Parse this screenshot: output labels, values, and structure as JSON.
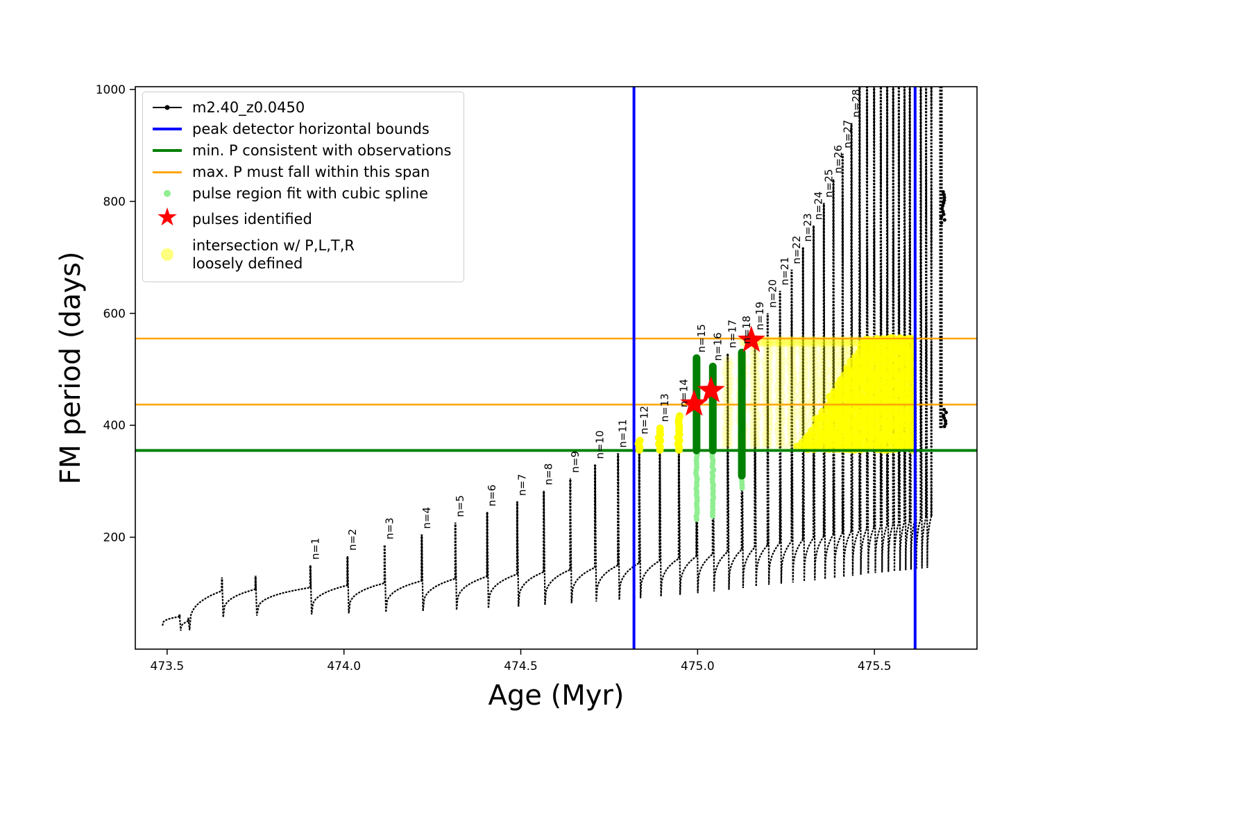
{
  "legend": {
    "items": [
      {
        "label": "m2.40_z0.0450",
        "type": "line-dot",
        "color": "#000000"
      },
      {
        "label": "peak detector horizontal bounds",
        "type": "line",
        "color": "#0000ff"
      },
      {
        "label": "min. P consistent with observations",
        "type": "line",
        "color": "#008000"
      },
      {
        "label": "max. P must fall within this span",
        "type": "line",
        "color": "#ffa500"
      },
      {
        "label": "pulse region fit with cubic spline",
        "type": "dot",
        "color": "#90ee90"
      },
      {
        "label": "pulses identified",
        "type": "star",
        "color": "#ff0000"
      },
      {
        "label": "intersection w/ P,L,T,R",
        "label2": "loosely defined",
        "type": "dot-faint",
        "color": "#ffff00"
      }
    ]
  },
  "chart_data": {
    "type": "line",
    "title": "",
    "xlabel": "Age (Myr)",
    "ylabel": "FM period (days)",
    "x_ticks": [
      "473.5",
      "474.0",
      "474.5",
      "475.0",
      "475.5"
    ],
    "x_tick_values": [
      473.5,
      474.0,
      474.5,
      475.0,
      475.5
    ],
    "y_ticks": [
      "200",
      "400",
      "600",
      "800",
      "1000"
    ],
    "y_tick_values": [
      200,
      400,
      600,
      800,
      1000
    ],
    "x_range": [
      473.41,
      475.79
    ],
    "y_range": [
      0,
      1005
    ],
    "x_start": 473.487,
    "series_label": "m2.40_z0.0450",
    "colors": {
      "series": "#000000",
      "peak_bounds": "#0000ff",
      "min_p": "#008000",
      "max_p_span": "#ffa500",
      "pulse_spline_light": "#90ee90",
      "pulse_spline_dark": "#008000",
      "pulses": "#ff0000",
      "intersection": "#ffff00"
    },
    "vlines_blue": [
      474.82,
      475.615
    ],
    "hline_green": 355,
    "hlines_orange": [
      437,
      555
    ],
    "cycles": [
      {
        "label": "",
        "x": 473.535,
        "peak": 62,
        "knee": 58,
        "min": 42
      },
      {
        "label": "",
        "x": 473.56,
        "peak": 56,
        "knee": 50,
        "min": 33
      },
      {
        "label": "",
        "x": 473.655,
        "peak": 128,
        "knee": 104,
        "min": 34
      },
      {
        "label": "",
        "x": 473.75,
        "peak": 131,
        "knee": 107,
        "min": 57
      },
      {
        "label": "n=1",
        "x": 473.905,
        "peak": 150,
        "knee": 110,
        "min": 60
      },
      {
        "label": "n=2",
        "x": 474.01,
        "peak": 166,
        "knee": 114,
        "min": 62
      },
      {
        "label": "n=3",
        "x": 474.115,
        "peak": 186,
        "knee": 118,
        "min": 64
      },
      {
        "label": "n=4",
        "x": 474.22,
        "peak": 205,
        "knee": 122,
        "min": 66
      },
      {
        "label": "n=5",
        "x": 474.315,
        "peak": 226,
        "knee": 126,
        "min": 68
      },
      {
        "label": "n=6",
        "x": 474.405,
        "peak": 245,
        "knee": 130,
        "min": 70
      },
      {
        "label": "n=7",
        "x": 474.49,
        "peak": 264,
        "knee": 134,
        "min": 73
      },
      {
        "label": "n=8",
        "x": 474.565,
        "peak": 283,
        "knee": 138,
        "min": 76
      },
      {
        "label": "n=9",
        "x": 474.64,
        "peak": 305,
        "knee": 142,
        "min": 79
      },
      {
        "label": "n=10",
        "x": 474.71,
        "peak": 330,
        "knee": 146,
        "min": 82
      },
      {
        "label": "n=11",
        "x": 474.775,
        "peak": 350,
        "knee": 150,
        "min": 85
      },
      {
        "label": "n=12",
        "x": 474.835,
        "peak": 374,
        "knee": 154,
        "min": 88
      },
      {
        "label": "n=13",
        "x": 474.893,
        "peak": 396,
        "knee": 158,
        "min": 91
      },
      {
        "label": "n=14",
        "x": 474.947,
        "peak": 422,
        "knee": 162,
        "min": 94
      },
      {
        "label": "n=15",
        "x": 474.997,
        "peak": 520,
        "knee": 166,
        "min": 97
      },
      {
        "label": "n=16",
        "x": 475.043,
        "peak": 505,
        "knee": 170,
        "min": 100
      },
      {
        "label": "n=17",
        "x": 475.085,
        "peak": 528,
        "knee": 174,
        "min": 103
      },
      {
        "label": "n=18",
        "x": 475.125,
        "peak": 535,
        "knee": 178,
        "min": 106
      },
      {
        "label": "n=19",
        "x": 475.162,
        "peak": 560,
        "knee": 182,
        "min": 109
      },
      {
        "label": "n=20",
        "x": 475.198,
        "peak": 600,
        "knee": 186,
        "min": 112
      },
      {
        "label": "n=21",
        "x": 475.233,
        "peak": 640,
        "knee": 190,
        "min": 115
      },
      {
        "label": "n=22",
        "x": 475.266,
        "peak": 678,
        "knee": 193,
        "min": 117
      },
      {
        "label": "n=23",
        "x": 475.298,
        "peak": 718,
        "knee": 196,
        "min": 119
      },
      {
        "label": "n=24",
        "x": 475.328,
        "peak": 757,
        "knee": 199,
        "min": 121
      },
      {
        "label": "n=25",
        "x": 475.357,
        "peak": 797,
        "knee": 202,
        "min": 123
      },
      {
        "label": "n=26",
        "x": 475.384,
        "peak": 840,
        "knee": 205,
        "min": 125
      },
      {
        "label": "n=27",
        "x": 475.41,
        "peak": 885,
        "knee": 208,
        "min": 127
      },
      {
        "label": "n=28",
        "x": 475.435,
        "peak": 940,
        "knee": 211,
        "min": 129
      },
      {
        "label": "",
        "x": 475.458,
        "peak": 1005,
        "knee": 214,
        "min": 131
      },
      {
        "label": "",
        "x": 475.479,
        "peak": 1005,
        "knee": 216,
        "min": 133
      },
      {
        "label": "",
        "x": 475.499,
        "peak": 1005,
        "knee": 218,
        "min": 135
      },
      {
        "label": "",
        "x": 475.518,
        "peak": 1005,
        "knee": 220,
        "min": 136
      },
      {
        "label": "",
        "x": 475.536,
        "peak": 1005,
        "knee": 222,
        "min": 137
      },
      {
        "label": "",
        "x": 475.553,
        "peak": 1005,
        "knee": 224,
        "min": 138
      },
      {
        "label": "",
        "x": 475.569,
        "peak": 1005,
        "knee": 226,
        "min": 139
      },
      {
        "label": "",
        "x": 475.585,
        "peak": 1005,
        "knee": 228,
        "min": 140
      },
      {
        "label": "",
        "x": 475.6,
        "peak": 1005,
        "knee": 230,
        "min": 141
      },
      {
        "label": "",
        "x": 475.615,
        "peak": 1005,
        "knee": 232,
        "min": 142
      },
      {
        "label": "",
        "x": 475.631,
        "peak": 1005,
        "knee": 234,
        "min": 143
      },
      {
        "label": "",
        "x": 475.646,
        "peak": 1005,
        "knee": 236,
        "min": 144
      },
      {
        "label": "",
        "x": 475.661,
        "peak": 1005,
        "knee": 238,
        "min": 145
      }
    ],
    "pulse_spline_columns": [
      {
        "x": 474.997,
        "y_bottom": 232,
        "y_top": 520,
        "bar_bottom": 355
      },
      {
        "x": 475.043,
        "y_bottom": 238,
        "y_top": 505,
        "bar_bottom": 355
      },
      {
        "x": 475.125,
        "y_bottom": 288,
        "y_top": 530,
        "bar_bottom": 310
      }
    ],
    "stars": [
      {
        "x": 474.99,
        "y": 438
      },
      {
        "x": 475.038,
        "y": 462
      },
      {
        "x": 475.152,
        "y": 552
      }
    ],
    "yellow_wedge": {
      "x0": 475.285,
      "x1": 475.612,
      "y0": 357,
      "y_cap": 555,
      "slope": 1042
    },
    "yellow_spike_blobs": [
      {
        "x": 474.835,
        "y0": 356,
        "y1": 376
      },
      {
        "x": 474.893,
        "y0": 356,
        "y1": 398
      },
      {
        "x": 474.947,
        "y0": 356,
        "y1": 421
      }
    ],
    "faint_region": {
      "x_min": 475.07,
      "x_max": 475.61,
      "y_min": 362,
      "y_max": 551,
      "row_y": 549,
      "row_x0": 475.13,
      "row_x1": 475.46
    },
    "right_band": {
      "x": 475.688,
      "y0": 395,
      "y1": 1005,
      "clusters": [
        {
          "x": 475.694,
          "y0": 762,
          "y1": 817
        },
        {
          "x": 475.7,
          "y0": 398,
          "y1": 432
        }
      ]
    }
  }
}
